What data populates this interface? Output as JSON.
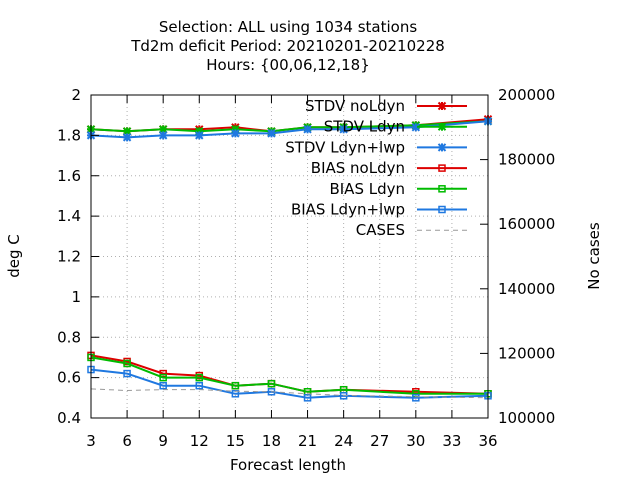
{
  "chart_data": {
    "type": "line",
    "title_lines": [
      "Selection: ALL using  1034 stations",
      "Td2m deficit   Period: 20210201-20210228",
      "Hours: {00,06,12,18}"
    ],
    "xlabel": "Forecast length",
    "ylabel": "deg C",
    "y2label": "No cases",
    "x": [
      3,
      6,
      9,
      12,
      15,
      18,
      21,
      24,
      27,
      30,
      33,
      36
    ],
    "xlim": [
      3,
      36
    ],
    "ylim": [
      0.4,
      2.0
    ],
    "y2lim": [
      100000,
      200000
    ],
    "xticks": [
      "3",
      "6",
      "9",
      "12",
      "15",
      "18",
      "21",
      "24",
      "27",
      "30",
      "33",
      "36"
    ],
    "yticks": [
      "0.4",
      "0.6",
      "0.8",
      "1",
      "1.2",
      "1.4",
      "1.6",
      "1.8",
      "2"
    ],
    "y2ticks": [
      "100000",
      "120000",
      "140000",
      "160000",
      "180000",
      "200000"
    ],
    "grid": true,
    "legend_position": "top-right",
    "series": [
      {
        "name": "STDV noLdyn",
        "marker": "x",
        "color": "#dd0000",
        "axis": "y",
        "x": [
          3,
          6,
          9,
          12,
          15,
          18,
          21,
          24,
          30,
          36
        ],
        "values": [
          1.83,
          1.82,
          1.83,
          1.83,
          1.84,
          1.82,
          1.84,
          1.84,
          1.85,
          1.88
        ]
      },
      {
        "name": "STDV Ldyn",
        "marker": "x",
        "color": "#00bb00",
        "axis": "y",
        "x": [
          3,
          6,
          9,
          12,
          15,
          18,
          21,
          24,
          30,
          36
        ],
        "values": [
          1.83,
          1.82,
          1.83,
          1.82,
          1.83,
          1.82,
          1.84,
          1.84,
          1.85,
          1.87
        ]
      },
      {
        "name": "STDV Ldyn+lwp",
        "marker": "x",
        "color": "#1f78e0",
        "axis": "y",
        "x": [
          3,
          6,
          9,
          12,
          15,
          18,
          21,
          24,
          30,
          36
        ],
        "values": [
          1.8,
          1.79,
          1.8,
          1.8,
          1.81,
          1.81,
          1.83,
          1.83,
          1.84,
          1.87
        ]
      },
      {
        "name": "BIAS noLdyn",
        "marker": "square",
        "color": "#dd0000",
        "axis": "y",
        "x": [
          3,
          6,
          9,
          12,
          15,
          18,
          21,
          24,
          30,
          36
        ],
        "values": [
          0.71,
          0.68,
          0.62,
          0.61,
          0.56,
          0.57,
          0.53,
          0.54,
          0.53,
          0.52
        ]
      },
      {
        "name": "BIAS Ldyn",
        "marker": "square",
        "color": "#00bb00",
        "axis": "y",
        "x": [
          3,
          6,
          9,
          12,
          15,
          18,
          21,
          24,
          30,
          36
        ],
        "values": [
          0.7,
          0.67,
          0.6,
          0.6,
          0.56,
          0.57,
          0.53,
          0.54,
          0.52,
          0.52
        ]
      },
      {
        "name": "BIAS Ldyn+lwp",
        "marker": "square",
        "color": "#1f78e0",
        "axis": "y",
        "x": [
          3,
          6,
          9,
          12,
          15,
          18,
          21,
          24,
          30,
          36
        ],
        "values": [
          0.64,
          0.62,
          0.56,
          0.56,
          0.52,
          0.53,
          0.5,
          0.51,
          0.5,
          0.51
        ]
      },
      {
        "name": "CASES",
        "marker": "none",
        "dashed": true,
        "color": "#999999",
        "axis": "y2",
        "x": [
          3,
          6,
          9,
          12,
          15,
          18,
          21,
          24,
          27,
          30,
          33,
          36
        ],
        "values": [
          109000,
          108500,
          108800,
          108800,
          108300,
          108100,
          107500,
          107000,
          106800,
          106600,
          106400,
          106300
        ]
      }
    ]
  }
}
